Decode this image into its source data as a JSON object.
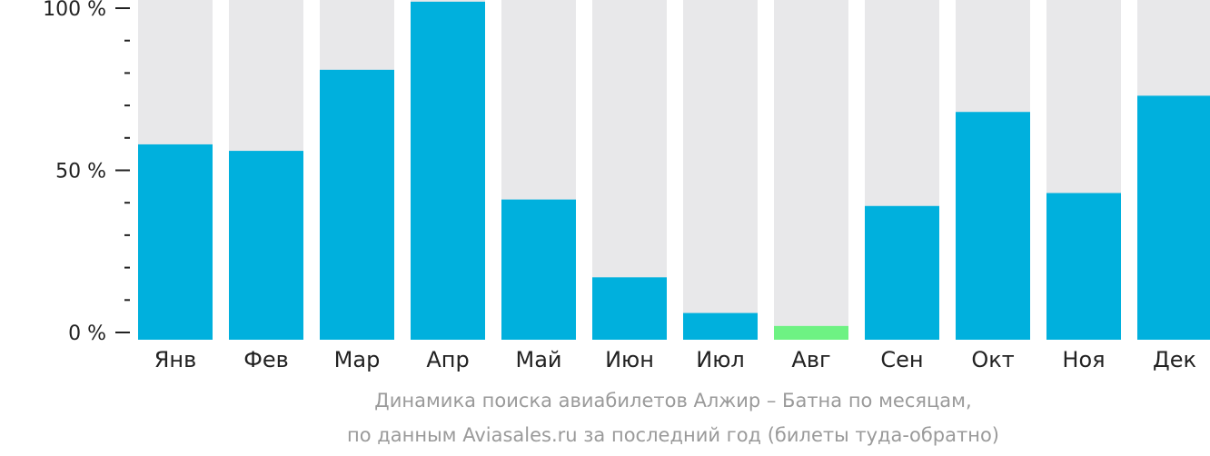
{
  "chart_data": {
    "type": "bar",
    "categories": [
      "Янв",
      "Фев",
      "Мар",
      "Апр",
      "Май",
      "Июн",
      "Июл",
      "Авг",
      "Сен",
      "Окт",
      "Ноя",
      "Дек"
    ],
    "values": [
      58,
      56,
      81,
      102,
      41,
      17,
      6,
      2,
      39,
      68,
      43,
      73
    ],
    "ylim": [
      0,
      100
    ],
    "yticks": [
      "0 %",
      "50 %",
      "100 %"
    ],
    "background_bar_color": "#e8e8ea",
    "bar_color": "#00b0dd",
    "highlight_color": "#6ef283",
    "highlight_category": "Авг",
    "caption_line1": "Динамика поиска авиабилетов Алжир – Батна по месяцам,",
    "caption_line2": "по данным Aviasales.ru за последний год (билеты туда-обратно)"
  }
}
